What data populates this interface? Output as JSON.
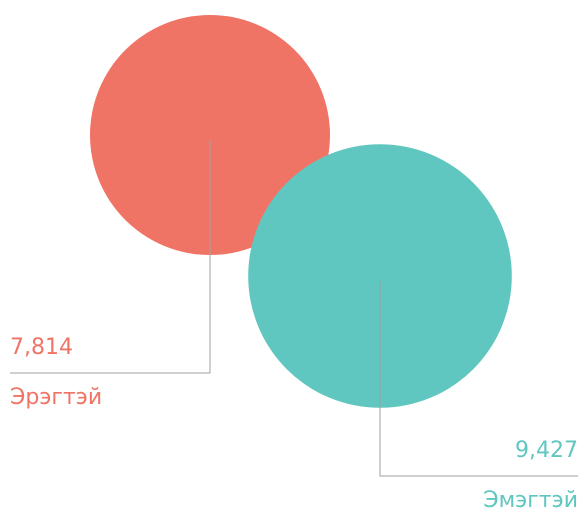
{
  "chart_data": {
    "type": "bubble",
    "categories": [
      "Эрэгтэй",
      "Эмэгтэй"
    ],
    "values": [
      7814,
      9427
    ],
    "value_labels": [
      "7,814",
      "9,427"
    ],
    "colors": [
      "#f07466",
      "#60c6c0"
    ]
  }
}
